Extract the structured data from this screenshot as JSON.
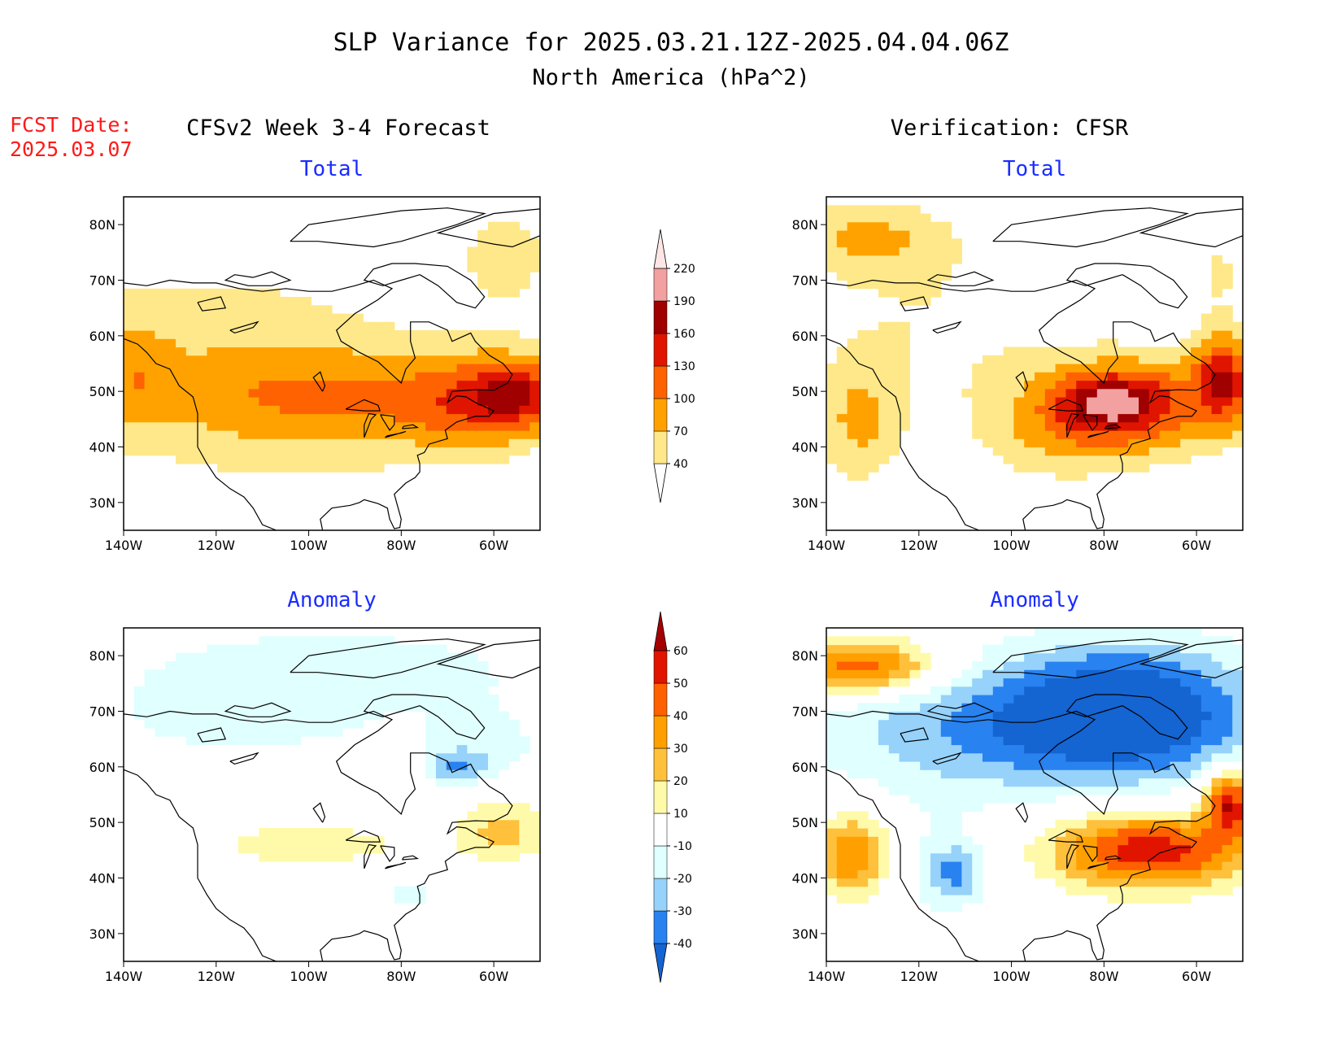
{
  "header": {
    "title": "SLP Variance for 2025.03.21.12Z-2025.04.04.06Z",
    "subtitle": "North America (hPa^2)",
    "fcst_label": "FCST Date:",
    "fcst_date": "2025.03.07",
    "left_column": "CFSv2 Week 3-4 Forecast",
    "right_column": "Verification: CFSR"
  },
  "colors": {
    "total_scale": [
      "#ffffff",
      "#ffe88a",
      "#ffa200",
      "#ff6200",
      "#e01500",
      "#a00000",
      "#f2a0a0",
      "#ffe6e6"
    ],
    "anomaly_scale": [
      "#1464d2",
      "#2882f0",
      "#96d2fa",
      "#e0ffff",
      "#ffffff",
      "#fffaaa",
      "#ffc03c",
      "#ffa000",
      "#ff6000",
      "#e11400",
      "#a50000"
    ],
    "coast": "#000000"
  },
  "chart_data": [
    {
      "type": "heatmap",
      "title": "Total",
      "column": "CFSv2 Week 3-4 Forecast",
      "lon_range": [
        -140,
        -50
      ],
      "lat_range": [
        25,
        85
      ],
      "x_ticks": [
        "140W",
        "120W",
        "100W",
        "80W",
        "60W"
      ],
      "y_ticks": [
        "30N",
        "40N",
        "50N",
        "60N",
        "70N",
        "80N"
      ],
      "legend": "colorbar",
      "blobs": [
        {
          "lon": -125,
          "lat": 56,
          "rx": 40,
          "ry": 24,
          "value": 48
        },
        {
          "lon": -90,
          "lat": 48,
          "rx": 38,
          "ry": 17,
          "value": 42
        },
        {
          "lon": -57,
          "lat": 75,
          "rx": 14,
          "ry": 12,
          "value": 48
        },
        {
          "lon": -138,
          "lat": 53,
          "rx": 8,
          "ry": 10,
          "value": 45
        },
        {
          "lon": -95,
          "lat": 49,
          "rx": 32,
          "ry": 8,
          "value": 40
        },
        {
          "lon": -62,
          "lat": 48,
          "rx": 17,
          "ry": 9,
          "value": 90
        },
        {
          "lon": -54,
          "lat": 50,
          "rx": 9,
          "ry": 6,
          "value": 80
        }
      ]
    },
    {
      "type": "heatmap",
      "title": "Total",
      "column": "Verification: CFSR",
      "lon_range": [
        -140,
        -50
      ],
      "lat_range": [
        25,
        85
      ],
      "x_ticks": [
        "140W",
        "120W",
        "100W",
        "80W",
        "60W"
      ],
      "y_ticks": [
        "30N",
        "40N",
        "50N",
        "60N",
        "70N",
        "80N"
      ],
      "legend": "colorbar",
      "blobs": [
        {
          "lon": -132,
          "lat": 78,
          "rx": 18,
          "ry": 7,
          "value": 65
        },
        {
          "lon": -118,
          "lat": 64,
          "rx": 30,
          "ry": 18,
          "value": 38
        },
        {
          "lon": -72,
          "lat": 48,
          "rx": 28,
          "ry": 10,
          "value": 110
        },
        {
          "lon": -79,
          "lat": 48,
          "rx": 11,
          "ry": 5,
          "value": 100
        },
        {
          "lon": -54,
          "lat": 53,
          "rx": 6,
          "ry": 8,
          "value": 110
        },
        {
          "lon": -133,
          "lat": 44,
          "rx": 10,
          "ry": 12,
          "value": 70
        },
        {
          "lon": -90,
          "lat": 40,
          "rx": 20,
          "ry": 8,
          "value": 40
        },
        {
          "lon": -55,
          "lat": 72,
          "rx": 8,
          "ry": 10,
          "value": 42
        }
      ]
    },
    {
      "type": "heatmap",
      "title": "Anomaly",
      "column": "CFSv2 Week 3-4 Forecast",
      "lon_range": [
        -140,
        -50
      ],
      "lat_range": [
        25,
        85
      ],
      "x_ticks": [
        "140W",
        "120W",
        "100W",
        "80W",
        "60W"
      ],
      "y_ticks": [
        "30N",
        "40N",
        "50N",
        "60N",
        "70N",
        "80N"
      ],
      "legend": "colorbar",
      "blobs": [
        {
          "lon": -95,
          "lat": 78,
          "rx": 55,
          "ry": 9,
          "value": -14
        },
        {
          "lon": -115,
          "lat": 68,
          "rx": 30,
          "ry": 7,
          "value": -13
        },
        {
          "lon": -62,
          "lat": 63,
          "rx": 14,
          "ry": 8,
          "value": -14
        },
        {
          "lon": -68,
          "lat": 60,
          "rx": 6,
          "ry": 3,
          "value": -22
        },
        {
          "lon": -100,
          "lat": 46,
          "rx": 28,
          "ry": 5,
          "value": 14
        },
        {
          "lon": -58,
          "lat": 49,
          "rx": 10,
          "ry": 6,
          "value": 24
        },
        {
          "lon": -78,
          "lat": 37,
          "rx": 8,
          "ry": 3,
          "value": -13
        }
      ]
    },
    {
      "type": "heatmap",
      "title": "Anomaly",
      "column": "Verification: CFSR",
      "lon_range": [
        -140,
        -50
      ],
      "lat_range": [
        25,
        85
      ],
      "x_ticks": [
        "140W",
        "120W",
        "100W",
        "80W",
        "60W"
      ],
      "y_ticks": [
        "30N",
        "40N",
        "50N",
        "60N",
        "70N",
        "80N"
      ],
      "legend": "colorbar",
      "blobs": [
        {
          "lon": -92,
          "lat": 67,
          "rx": 50,
          "ry": 12,
          "value": -35
        },
        {
          "lon": -75,
          "lat": 72,
          "rx": 25,
          "ry": 12,
          "value": -32
        },
        {
          "lon": -70,
          "lat": 45,
          "rx": 22,
          "ry": 7,
          "value": 58
        },
        {
          "lon": -132,
          "lat": 78,
          "rx": 16,
          "ry": 5,
          "value": 52
        },
        {
          "lon": -134,
          "lat": 44,
          "rx": 9,
          "ry": 8,
          "value": 48
        },
        {
          "lon": -53,
          "lat": 54,
          "rx": 5,
          "ry": 6,
          "value": 60
        },
        {
          "lon": -112,
          "lat": 41,
          "rx": 6,
          "ry": 5,
          "value": -25
        },
        {
          "lon": -122,
          "lat": 42,
          "rx": 20,
          "ry": 12,
          "value": -12
        }
      ]
    }
  ],
  "colorbars": [
    {
      "type": "colorbar",
      "levels": [
        "40",
        "70",
        "100",
        "130",
        "160",
        "190",
        "220"
      ]
    },
    {
      "type": "colorbar",
      "levels": [
        "-40",
        "-30",
        "-20",
        "-10",
        "10",
        "20",
        "30",
        "40",
        "50",
        "60"
      ]
    }
  ]
}
